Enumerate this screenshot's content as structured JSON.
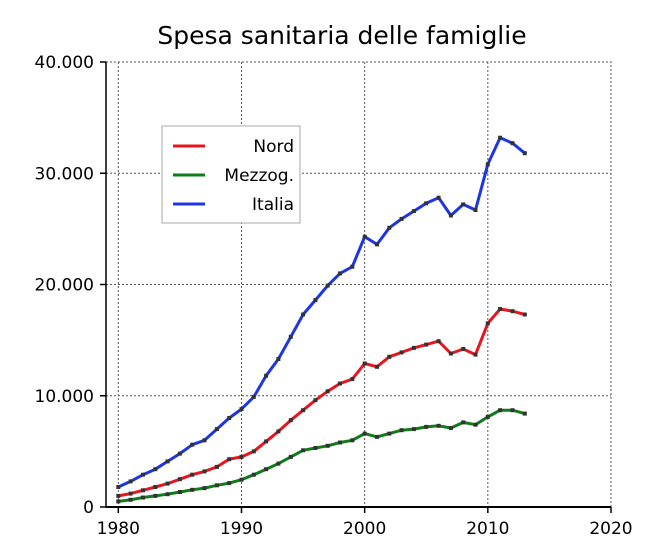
{
  "chart_data": {
    "type": "line",
    "title": "Spesa sanitaria delle famiglie",
    "xlabel": "",
    "ylabel": "",
    "xlim": [
      1979,
      2020
    ],
    "ylim": [
      0,
      40000
    ],
    "x_ticks": [
      1980,
      1990,
      2000,
      2010,
      2020
    ],
    "x_tick_labels": [
      "1980",
      "1990",
      "2000",
      "2010",
      "2020"
    ],
    "y_ticks": [
      0,
      10000,
      20000,
      30000,
      40000
    ],
    "y_tick_labels": [
      "0",
      "10.000",
      "20.000",
      "30.000",
      "40.000"
    ],
    "grid": true,
    "legend_position": "upper-left",
    "x": [
      1980,
      1981,
      1982,
      1983,
      1984,
      1985,
      1986,
      1987,
      1988,
      1989,
      1990,
      1991,
      1992,
      1993,
      1994,
      1995,
      1996,
      1997,
      1998,
      1999,
      2000,
      2001,
      2002,
      2003,
      2004,
      2005,
      2006,
      2007,
      2008,
      2009,
      2010,
      2011,
      2012,
      2013
    ],
    "series": [
      {
        "name": "Nord",
        "color": "#e8141e",
        "values": [
          1000,
          1200,
          1500,
          1800,
          2100,
          2500,
          2900,
          3200,
          3600,
          4300,
          4500,
          5000,
          5900,
          6800,
          7800,
          8700,
          9600,
          10400,
          11100,
          11500,
          12900,
          12600,
          13500,
          13900,
          14300,
          14600,
          14900,
          13800,
          14200,
          13700,
          16500,
          17800,
          17600,
          17300
        ]
      },
      {
        "name": "Mezzog.",
        "color": "#0e7c17",
        "values": [
          500,
          650,
          850,
          1000,
          1150,
          1350,
          1550,
          1700,
          1950,
          2150,
          2450,
          2900,
          3400,
          3900,
          4500,
          5100,
          5300,
          5500,
          5800,
          6000,
          6600,
          6300,
          6600,
          6900,
          7000,
          7200,
          7300,
          7100,
          7600,
          7400,
          8100,
          8700,
          8700,
          8400
        ]
      },
      {
        "name": "Italia",
        "color": "#1d35e6",
        "values": [
          1800,
          2300,
          2900,
          3400,
          4100,
          4800,
          5600,
          6000,
          7000,
          8000,
          8800,
          9900,
          11800,
          13300,
          15300,
          17300,
          18600,
          19900,
          21000,
          21600,
          24300,
          23600,
          25100,
          25900,
          26600,
          27300,
          27800,
          26200,
          27200,
          26700,
          30800,
          33200,
          32700,
          31800
        ]
      }
    ]
  }
}
